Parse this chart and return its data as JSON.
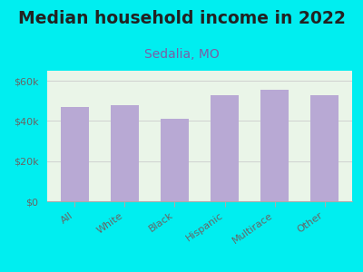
{
  "categories": [
    "All",
    "White",
    "Black",
    "Hispanic",
    "Multirace",
    "Other"
  ],
  "values": [
    47000,
    48000,
    41000,
    53000,
    55500,
    53000
  ],
  "bar_color": "#b8a9d4",
  "title": "Median household income in 2022",
  "subtitle": "Sedalia, MO",
  "subtitle_color": "#7b5ea7",
  "title_color": "#222222",
  "title_fontsize": 13.5,
  "subtitle_fontsize": 10,
  "ylim": [
    0,
    65000
  ],
  "yticks": [
    0,
    20000,
    40000,
    60000
  ],
  "ytick_labels": [
    "$0",
    "$20k",
    "$40k",
    "$60k"
  ],
  "background_color": "#00eef0",
  "plot_bg_color": "#eaf5e8",
  "tick_color": "#666666",
  "tick_fontsize": 8,
  "bar_width": 0.55,
  "xtick_rotation": 35,
  "grid_color": "#cccccc"
}
